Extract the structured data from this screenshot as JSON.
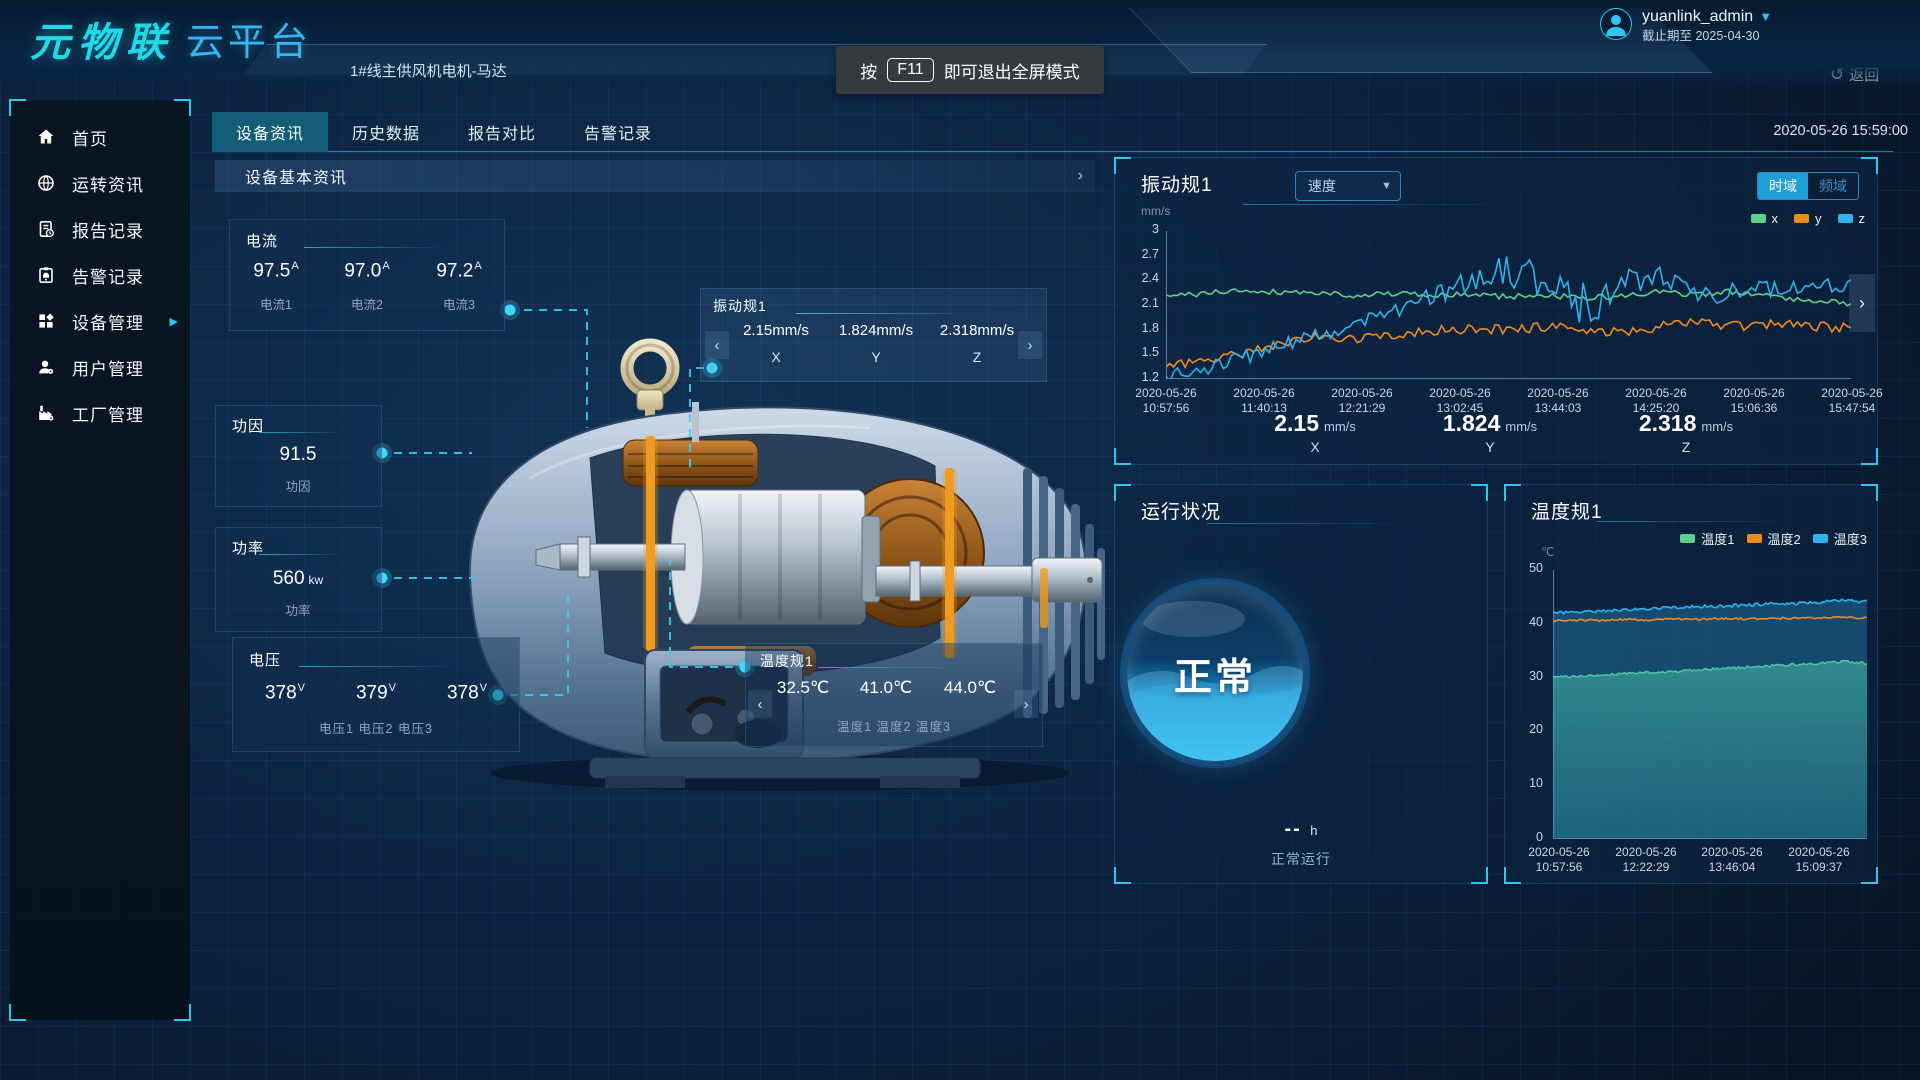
{
  "brand": {
    "name": "元物联",
    "platform": "云平台"
  },
  "header": {
    "device_name": "1#线主供风机电机-马达",
    "fullscreen_tip": {
      "prefix": "按",
      "key": "F11",
      "suffix": "即可退出全屏模式"
    },
    "user": {
      "name": "yuanlink_admin",
      "expiry": "截止期至 2025-04-30"
    },
    "back_label": "返回",
    "timestamp": "2020-05-26 15:59:00"
  },
  "sidebar": {
    "items": [
      {
        "label": "首页",
        "icon": "home-icon"
      },
      {
        "label": "运转资讯",
        "icon": "globe-icon"
      },
      {
        "label": "报告记录",
        "icon": "report-icon"
      },
      {
        "label": "告警记录",
        "icon": "alarm-record-icon"
      },
      {
        "label": "设备管理",
        "icon": "device-grid-icon",
        "has_submenu": true
      },
      {
        "label": "用户管理",
        "icon": "user-icon"
      },
      {
        "label": "工厂管理",
        "icon": "factory-icon"
      }
    ]
  },
  "tabs": [
    {
      "label": "设备资讯",
      "active": true
    },
    {
      "label": "历史数据",
      "active": false
    },
    {
      "label": "报告对比",
      "active": false
    },
    {
      "label": "告警记录",
      "active": false
    }
  ],
  "section_title": "设备基本资讯",
  "callouts": {
    "current": {
      "title": "电流",
      "unit": "A",
      "values": [
        "97.5",
        "97.0",
        "97.2"
      ],
      "labels": [
        "电流1",
        "电流2",
        "电流3"
      ]
    },
    "power_factor": {
      "title": "功因",
      "value": "91.5",
      "label": "功因"
    },
    "power": {
      "title": "功率",
      "value": "560",
      "unit": "kw",
      "label": "功率"
    },
    "voltage": {
      "title": "电压",
      "unit": "V",
      "values": [
        "378",
        "379",
        "378"
      ],
      "labels_line": "电压1 电压2 电压3"
    },
    "vibration": {
      "title": "振动规1",
      "values": [
        "2.15mm/s",
        "1.824mm/s",
        "2.318mm/s"
      ],
      "labels": [
        "X",
        "Y",
        "Z"
      ]
    },
    "temperature": {
      "title": "温度规1",
      "values": [
        "32.5℃",
        "41.0℃",
        "44.0℃"
      ],
      "labels_line": "温度1 温度2 温度3"
    }
  },
  "vibration_panel": {
    "title": "振动规1",
    "dropdown_value": "速度",
    "toggles": [
      {
        "label": "时域",
        "active": true
      },
      {
        "label": "频域",
        "active": false
      }
    ],
    "unit_label": "mm/s",
    "summary": [
      {
        "value": "2.15",
        "unit": "mm/s",
        "axis": "X"
      },
      {
        "value": "1.824",
        "unit": "mm/s",
        "axis": "Y"
      },
      {
        "value": "2.318",
        "unit": "mm/s",
        "axis": "Z"
      }
    ]
  },
  "status_panel": {
    "title": "运行状况",
    "status": "正常",
    "hours": "--",
    "hours_unit": "h",
    "caption": "正常运行"
  },
  "temperature_panel": {
    "title": "温度规1",
    "unit_label": "℃"
  },
  "colors": {
    "accent_cyan": "#2bc8f0",
    "series_x": "#5fd08a",
    "series_y": "#ef8b1d",
    "series_z": "#2fb3ea",
    "status_blue": "#27c3f0"
  },
  "chart_data": [
    {
      "id": "vibration-trend",
      "type": "line",
      "title": "振动规1",
      "ylabel": "mm/s",
      "ylim": [
        1.2,
        3.0
      ],
      "grid": false,
      "legend_position": "top-right",
      "yticks": [
        "3",
        "2.7",
        "2.4",
        "2.1",
        "1.8",
        "1.5",
        "1.2"
      ],
      "x_labels": [
        {
          "d": "2020-05-26",
          "t": "10:57:56"
        },
        {
          "d": "2020-05-26",
          "t": "11:40:13"
        },
        {
          "d": "2020-05-26",
          "t": "12:21:29"
        },
        {
          "d": "2020-05-26",
          "t": "13:02:45"
        },
        {
          "d": "2020-05-26",
          "t": "13:44:03"
        },
        {
          "d": "2020-05-26",
          "t": "14:25:20"
        },
        {
          "d": "2020-05-26",
          "t": "15:06:36"
        },
        {
          "d": "2020-05-26",
          "t": "15:47:54"
        }
      ],
      "legend": [
        {
          "label": "x",
          "color": "#5fd08a"
        },
        {
          "label": "y",
          "color": "#ef8b1d"
        },
        {
          "label": "z",
          "color": "#2fb3ea"
        }
      ],
      "series": [
        {
          "name": "x",
          "color": "#5fd08a",
          "noise": 0.035,
          "values": [
            2.2,
            2.24,
            2.28,
            2.26,
            2.25,
            2.22,
            2.24,
            2.21,
            2.23,
            2.2,
            2.22,
            2.18,
            2.21,
            2.26,
            2.22,
            2.27,
            2.2,
            2.16,
            2.12
          ]
        },
        {
          "name": "y",
          "color": "#ef8b1d",
          "noise": 0.06,
          "values": [
            1.35,
            1.42,
            1.52,
            1.63,
            1.72,
            1.68,
            1.73,
            1.78,
            1.82,
            1.8,
            1.84,
            1.8,
            1.76,
            1.84,
            1.88,
            1.85,
            1.86,
            1.84,
            1.82
          ]
        },
        {
          "name": "z",
          "color": "#2fb3ea",
          "noise": 0.09,
          "noise_bump": {
            "center": 0.6,
            "width": 0.16,
            "gain": 2.0
          },
          "values": [
            1.24,
            1.32,
            1.45,
            1.6,
            1.73,
            1.86,
            2.02,
            2.2,
            2.4,
            2.52,
            2.38,
            2.12,
            2.32,
            2.38,
            2.2,
            2.28,
            2.3,
            2.36,
            2.33
          ]
        }
      ]
    },
    {
      "id": "temperature-trend",
      "type": "area",
      "title": "温度规1",
      "ylabel": "℃",
      "ylim": [
        0,
        50
      ],
      "grid": false,
      "legend_position": "top-right",
      "yticks": [
        "50",
        "40",
        "30",
        "20",
        "10",
        "0"
      ],
      "x_labels": [
        {
          "d": "2020-05-26",
          "t": "10:57:56"
        },
        {
          "d": "2020-05-26",
          "t": "12:22:29"
        },
        {
          "d": "2020-05-26",
          "t": "13:46:04"
        },
        {
          "d": "2020-05-26",
          "t": "15:09:37"
        }
      ],
      "legend": [
        {
          "label": "温度1",
          "color": "#5fd08a"
        },
        {
          "label": "温度2",
          "color": "#ef8b1d"
        },
        {
          "label": "温度3",
          "color": "#2fb3ea"
        }
      ],
      "series": [
        {
          "name": "温度1",
          "color": "#5fd08a",
          "noise": 0.22,
          "fill": "green",
          "values": [
            30.1,
            30.2,
            30.5,
            30.8,
            31.0,
            31.1,
            31.4,
            31.7,
            31.9,
            32.2,
            32.4,
            32.6,
            33.0,
            32.6
          ]
        },
        {
          "name": "温度3",
          "color": "#2fb3ea",
          "noise": 0.28,
          "fill": "cyan",
          "values": [
            42.0,
            42.2,
            42.4,
            42.6,
            42.8,
            43.0,
            43.2,
            43.3,
            43.5,
            43.7,
            43.8,
            44.0,
            44.3,
            44.1
          ]
        },
        {
          "name": "温度2",
          "color": "#ef8b1d",
          "noise": 0.18,
          "values": [
            40.6,
            40.7,
            40.6,
            40.8,
            40.7,
            40.9,
            40.8,
            41.0,
            40.9,
            41.0,
            41.1,
            41.0,
            41.2,
            41.1
          ]
        }
      ]
    }
  ]
}
